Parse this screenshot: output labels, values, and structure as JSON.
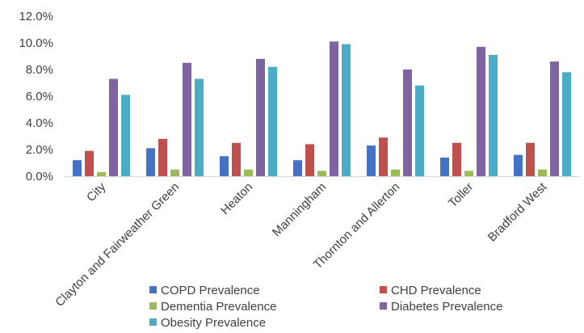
{
  "chart_data": {
    "type": "bar",
    "categories": [
      "City",
      "Clayton and Fairweather Green",
      "Heaton",
      "Manningham",
      "Thornton and Allerton",
      "Toller",
      "Bradford West"
    ],
    "series": [
      {
        "name": "COPD Prevalence",
        "color": "#4472C4",
        "values": [
          1.2,
          2.1,
          1.5,
          1.2,
          2.3,
          1.4,
          1.6
        ]
      },
      {
        "name": "CHD  Prevalence",
        "color": "#C0504D",
        "values": [
          1.9,
          2.8,
          2.5,
          2.4,
          2.9,
          2.5,
          2.5
        ]
      },
      {
        "name": "Dementia Prevalence",
        "color": "#9BBB59",
        "values": [
          0.3,
          0.5,
          0.5,
          0.4,
          0.5,
          0.4,
          0.5
        ]
      },
      {
        "name": "Diabetes Prevalence",
        "color": "#8064A2",
        "values": [
          7.3,
          8.5,
          8.8,
          10.1,
          8.0,
          9.7,
          8.6
        ]
      },
      {
        "name": "Obesity Prevalence",
        "color": "#4BACC6",
        "values": [
          6.1,
          7.3,
          8.2,
          9.9,
          6.8,
          9.1,
          7.8
        ]
      }
    ],
    "yticks": [
      "0.0%",
      "2.0%",
      "4.0%",
      "6.0%",
      "8.0%",
      "10.0%",
      "12.0%"
    ],
    "ylim": [
      0,
      12
    ],
    "title": "",
    "xlabel": "",
    "ylabel": "",
    "grid": false,
    "legend_position": "bottom"
  }
}
